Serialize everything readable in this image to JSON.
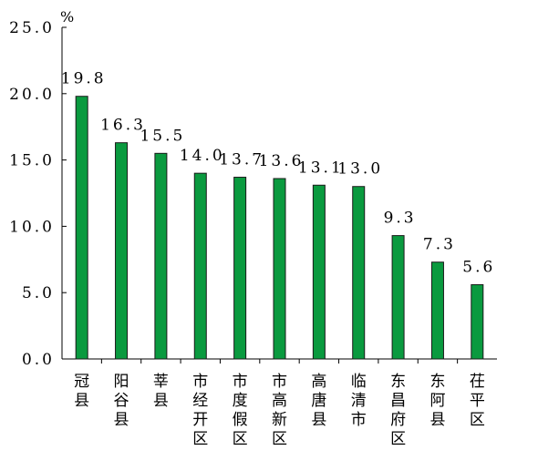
{
  "chart_data": {
    "type": "bar",
    "unit": "%",
    "categories": [
      "冠县",
      "阳谷县",
      "莘县",
      "市经开区",
      "市度假区",
      "市高新区",
      "高唐县",
      "临清市",
      "东昌府区",
      "东阿县",
      "茌平区"
    ],
    "values": [
      19.8,
      16.3,
      15.5,
      14.0,
      13.7,
      13.6,
      13.1,
      13.0,
      9.3,
      7.3,
      5.6
    ],
    "value_labels": [
      "19.8",
      "16.3",
      "15.5",
      "14.0",
      "13.7",
      "13.6",
      "13.1",
      "13.0",
      "9.3",
      "7.3",
      "5.6"
    ],
    "y_ticks": [
      "0.0",
      "5.0",
      "10.0",
      "15.0",
      "20.0",
      "25.0"
    ],
    "ylim": [
      0,
      25
    ],
    "grid": false,
    "bar_color": "#0a9a3f",
    "bar_edge_color": "#1a1a1a"
  }
}
